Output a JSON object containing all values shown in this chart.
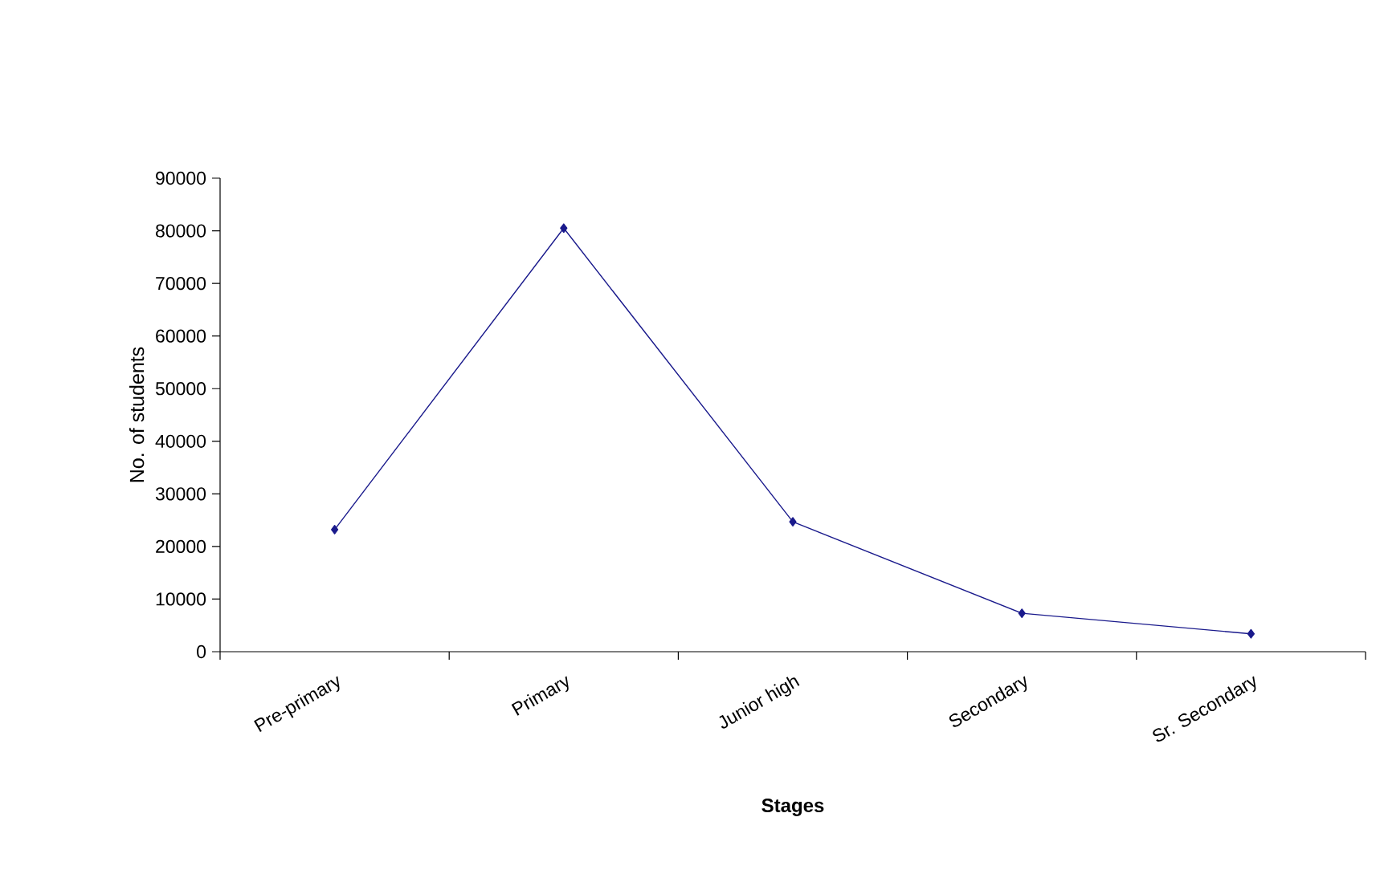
{
  "chart_data": {
    "type": "line",
    "xlabel": "Stages",
    "ylabel": "No. of students",
    "categories": [
      "Pre-primary",
      "Primary",
      "Junior high",
      "Secondary",
      "Sr. Secondary"
    ],
    "values": [
      23200,
      80500,
      24700,
      7300,
      3400
    ],
    "color": "#1a1a8c",
    "marker": "diamond",
    "line_style": "solid",
    "ylim": [
      0,
      90000
    ],
    "yticks": [
      0,
      10000,
      20000,
      30000,
      40000,
      50000,
      60000,
      70000,
      80000,
      90000
    ]
  }
}
